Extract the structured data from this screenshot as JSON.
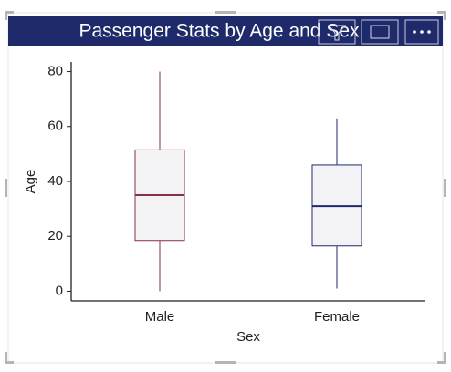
{
  "chart_data": {
    "type": "box",
    "title": "Passenger Stats by Age and Sex",
    "x_label": "Sex",
    "y_label": "Age",
    "categories": [
      "Male",
      "Female"
    ],
    "boxes": [
      {
        "min": 0,
        "q1": 18.5,
        "median": 35,
        "q3": 51.5,
        "max": 80,
        "color": "#8a2f45"
      },
      {
        "min": 1,
        "q1": 16.5,
        "median": 31,
        "q3": 46,
        "max": 63,
        "color": "#1f2a6e"
      }
    ],
    "box_fill": "#f3f3f6",
    "ylim": [
      -3.5,
      83.5
    ],
    "yticks": [
      0,
      20,
      40,
      60,
      80
    ]
  }
}
